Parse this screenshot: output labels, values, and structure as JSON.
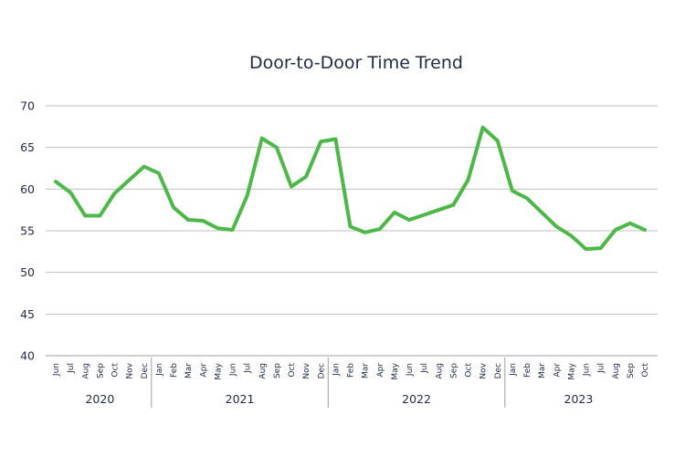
{
  "chart_data": {
    "type": "line",
    "title": "Door-to-Door Time Trend",
    "xlabel": "",
    "ylabel": "",
    "ylim": [
      40,
      70
    ],
    "yticks": [
      40,
      45,
      50,
      55,
      60,
      65,
      70
    ],
    "grid": true,
    "line_color": "#4cb848",
    "groups": [
      {
        "year": "2020",
        "months": [
          "Jun",
          "Jul",
          "Aug",
          "Sep",
          "Oct",
          "Nov",
          "Dec"
        ]
      },
      {
        "year": "2021",
        "months": [
          "Jan",
          "Feb",
          "Mar",
          "Apr",
          "May",
          "Jun",
          "Jul",
          "Aug",
          "Sep",
          "Oct",
          "Nov",
          "Dec"
        ]
      },
      {
        "year": "2022",
        "months": [
          "Jan",
          "Feb",
          "Mar",
          "Apr",
          "May",
          "Jun",
          "Jul",
          "Aug",
          "Sep",
          "Oct",
          "Nov",
          "Dec"
        ]
      },
      {
        "year": "2023",
        "months": [
          "Jan",
          "Feb",
          "Mar",
          "Apr",
          "May",
          "Jun",
          "Jul",
          "Aug",
          "Sep",
          "Oct"
        ]
      }
    ],
    "x_tick_labels": [
      "Jun",
      "Jul",
      "Aug",
      "Sep",
      "Oct",
      "Nov",
      "Dec",
      "Jan",
      "Feb",
      "Mar",
      "Apr",
      "May",
      "Jun",
      "Jul",
      "Aug",
      "Sep",
      "Oct",
      "Nov",
      "Dec",
      "Jan",
      "Feb",
      "Mar",
      "Apr",
      "May",
      "Jun",
      "Jul",
      "Aug",
      "Sep",
      "Oct",
      "Nov",
      "Dec",
      "Jan",
      "Feb",
      "Mar",
      "Apr",
      "May",
      "Jun",
      "Jul",
      "Aug",
      "Sep",
      "Oct"
    ],
    "series": [
      {
        "values": [
          60.9,
          59.6,
          56.8,
          56.8,
          59.5,
          61.1,
          62.7,
          61.9,
          57.8,
          56.3,
          56.2,
          55.3,
          55.1,
          59.2,
          66.1,
          65.0,
          60.3,
          61.5,
          65.7,
          66.0,
          55.5,
          54.8,
          55.2,
          57.2,
          56.3,
          56.9,
          57.5,
          58.1,
          61.1,
          67.4,
          65.8,
          59.8,
          58.9,
          57.2,
          55.5,
          54.4,
          52.8,
          52.9,
          55.1,
          55.9,
          55.1
        ]
      }
    ]
  }
}
